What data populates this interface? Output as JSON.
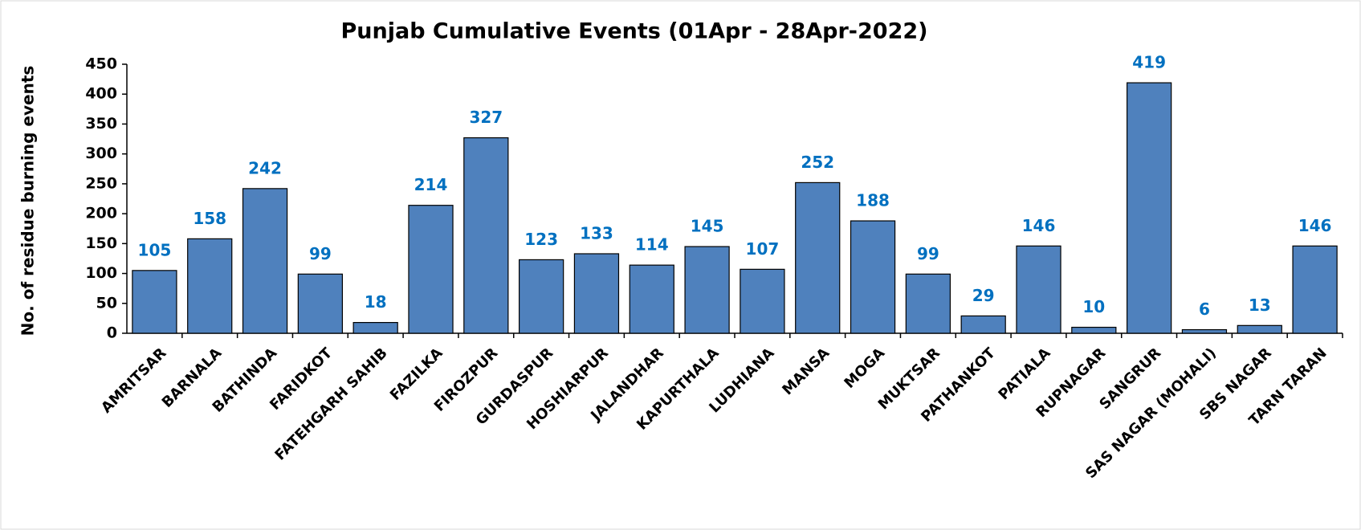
{
  "chart_data": {
    "type": "bar",
    "title": "Punjab Cumulative Events (01Apr - 28Apr-2022)",
    "y_label": "No. of residue burning events",
    "categories": [
      "AMRITSAR",
      "BARNALA",
      "BATHINDA",
      "FARIDKOT",
      "FATEHGARH SAHIB",
      "FAZILKA",
      "FIROZPUR",
      "GURDASPUR",
      "HOSHIARPUR",
      "JALANDHAR",
      "KAPURTHALA",
      "LUDHIANA",
      "MANSA",
      "MOGA",
      "MUKTSAR",
      "PATHANKOT",
      "PATIALA",
      "RUPNAGAR",
      "SANGRUR",
      "SAS NAGAR (MOHALI)",
      "SBS NAGAR",
      "TARN TARAN"
    ],
    "values": [
      105,
      158,
      242,
      99,
      18,
      214,
      327,
      123,
      133,
      114,
      145,
      107,
      252,
      188,
      99,
      29,
      146,
      10,
      419,
      6,
      13,
      146
    ],
    "color": "#4f81bd",
    "ylim": [
      0,
      450
    ],
    "yticks": [
      0,
      50,
      100,
      150,
      200,
      250,
      300,
      350,
      400,
      450
    ],
    "grid": false
  }
}
